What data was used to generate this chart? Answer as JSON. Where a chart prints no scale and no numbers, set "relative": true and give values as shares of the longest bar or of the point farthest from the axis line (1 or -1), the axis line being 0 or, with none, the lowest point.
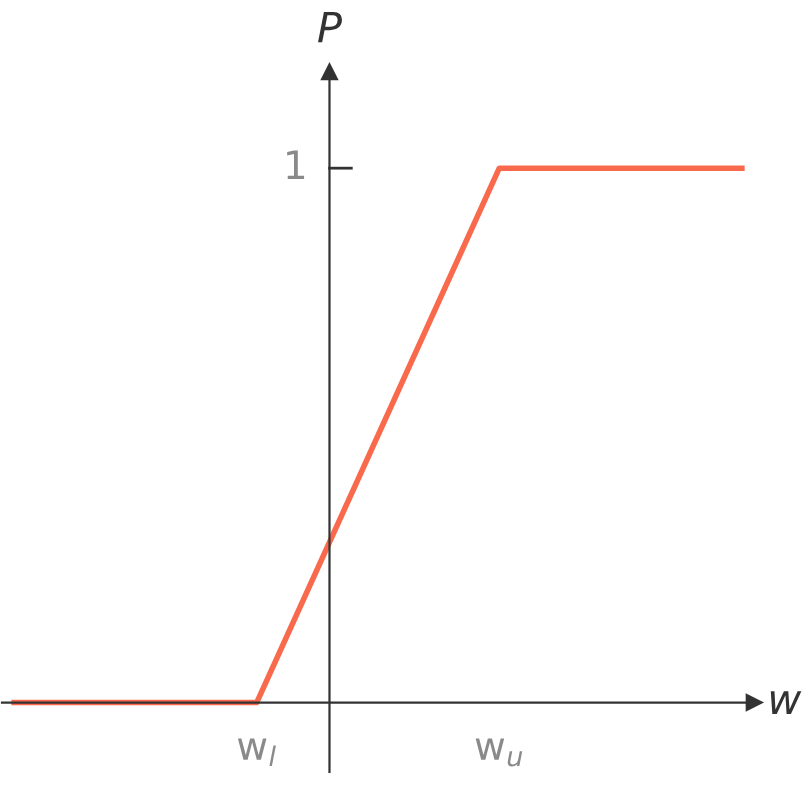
{
  "chart_data": {
    "type": "line",
    "xlabel": "w",
    "ylabel": "P",
    "relative": true,
    "categories": [
      null,
      "w$_{l}$",
      "w$_{u}$",
      null
    ],
    "series": [
      {
        "color": "#f96a4d",
        "values": [
          0,
          0,
          1,
          1
        ]
      }
    ],
    "annotations": [
      "1"
    ],
    "grid": false,
    "marker": "none",
    "line_style": "solid"
  }
}
